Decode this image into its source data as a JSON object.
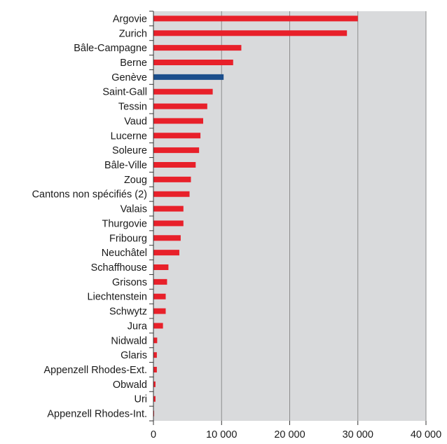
{
  "chart_data": {
    "type": "bar",
    "orientation": "horizontal",
    "title": "",
    "xlabel": "",
    "ylabel": "",
    "xlim": [
      0,
      40000
    ],
    "grid": true,
    "legend": "none",
    "categories": [
      "Argovie",
      "Zurich",
      "Bâle-Campagne",
      "Berne",
      "Genève",
      "Saint-Gall",
      "Tessin",
      "Vaud",
      "Lucerne",
      "Soleure",
      "Bâle-Ville",
      "Zoug",
      "Cantons non spécifiés (2)",
      "Valais",
      "Thurgovie",
      "Fribourg",
      "Neuchâtel",
      "Schaffhouse",
      "Grisons",
      "Liechtenstein",
      "Schwytz",
      "Jura",
      "Nidwald",
      "Glaris",
      "Appenzell Rhodes-Ext.",
      "Obwald",
      "Uri",
      "Appenzell Rhodes-Int."
    ],
    "values": [
      30000,
      28400,
      12900,
      11700,
      10300,
      8700,
      7900,
      7300,
      6900,
      6700,
      6200,
      5500,
      5300,
      4400,
      4400,
      4000,
      3800,
      2200,
      2000,
      1800,
      1800,
      1400,
      550,
      500,
      500,
      300,
      300,
      100
    ],
    "highlight": "Genève",
    "ticks": [
      0,
      10000,
      20000,
      30000,
      40000
    ],
    "tick_labels": [
      "0",
      "10 000",
      "20 000",
      "30 000",
      "40 000"
    ],
    "colors": {
      "bar": "#e8202a",
      "highlight": "#1b4e8c",
      "plot_bg": "#d9dadc",
      "grid": "#8c8c8c",
      "axis": "#333333"
    }
  }
}
